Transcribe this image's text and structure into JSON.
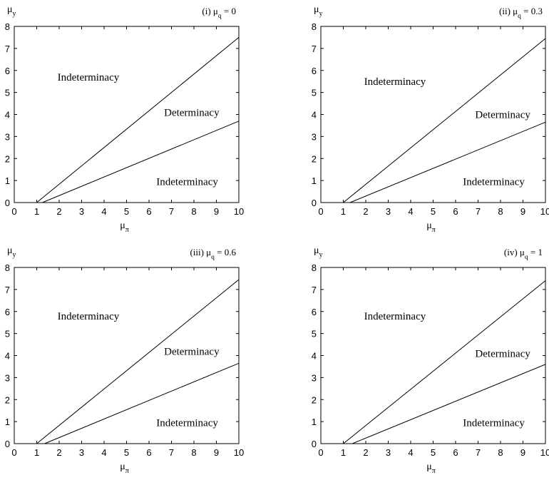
{
  "chart_data": [
    {
      "type": "line",
      "title": "(i) μ",
      "title_sub": "q",
      "title_value": " = 0",
      "xlabel": "μ",
      "xlabel_sub": "π",
      "ylabel": "μ",
      "ylabel_sub": "y",
      "xlim": [
        0,
        10
      ],
      "ylim": [
        0,
        8
      ],
      "x_ticks": [
        "0",
        "1",
        "2",
        "3",
        "4",
        "5",
        "6",
        "7",
        "8",
        "9",
        "10"
      ],
      "y_ticks": [
        "0",
        "1",
        "2",
        "3",
        "4",
        "5",
        "6",
        "7",
        "8"
      ],
      "grid": false,
      "series": [
        {
          "x": [
            1.0,
            10
          ],
          "y": [
            0,
            7.5
          ]
        },
        {
          "x": [
            1.25,
            10
          ],
          "y": [
            0,
            3.7
          ]
        }
      ],
      "annotations": [
        {
          "text": "Indeterminacy",
          "x": 3.3,
          "y": 5.7
        },
        {
          "text": "Determinacy",
          "x": 7.9,
          "y": 4.1
        },
        {
          "text": "Indeterminacy",
          "x": 7.7,
          "y": 0.95
        }
      ]
    },
    {
      "type": "line",
      "title": "(ii) μ",
      "title_sub": "q",
      "title_value": " = 0.3",
      "xlabel": "μ",
      "xlabel_sub": "π",
      "ylabel": "μ",
      "ylabel_sub": "y",
      "xlim": [
        0,
        10
      ],
      "ylim": [
        0,
        8
      ],
      "x_ticks": [
        "0",
        "1",
        "2",
        "3",
        "4",
        "5",
        "6",
        "7",
        "8",
        "9",
        "10"
      ],
      "y_ticks": [
        "0",
        "1",
        "2",
        "3",
        "4",
        "5",
        "6",
        "7",
        "8"
      ],
      "grid": false,
      "series": [
        {
          "x": [
            1.0,
            10
          ],
          "y": [
            0,
            7.45
          ]
        },
        {
          "x": [
            1.3,
            10
          ],
          "y": [
            0,
            3.65
          ]
        }
      ],
      "annotations": [
        {
          "text": "Indeterminacy",
          "x": 3.3,
          "y": 5.5
        },
        {
          "text": "Determinacy",
          "x": 8.1,
          "y": 4.0
        },
        {
          "text": "Indeterminacy",
          "x": 7.7,
          "y": 0.95
        }
      ]
    },
    {
      "type": "line",
      "title": "(iii) μ",
      "title_sub": "q",
      "title_value": " = 0.6",
      "xlabel": "μ",
      "xlabel_sub": "π",
      "ylabel": "μ",
      "ylabel_sub": "y",
      "xlim": [
        0,
        10
      ],
      "ylim": [
        0,
        8
      ],
      "x_ticks": [
        "0",
        "1",
        "2",
        "3",
        "4",
        "5",
        "6",
        "7",
        "8",
        "9",
        "10"
      ],
      "y_ticks": [
        "0",
        "1",
        "2",
        "3",
        "4",
        "5",
        "6",
        "7",
        "8"
      ],
      "grid": false,
      "series": [
        {
          "x": [
            1.0,
            10
          ],
          "y": [
            0,
            7.45
          ]
        },
        {
          "x": [
            1.35,
            10
          ],
          "y": [
            0,
            3.65
          ]
        }
      ],
      "annotations": [
        {
          "text": "Indeterminacy",
          "x": 3.3,
          "y": 5.8
        },
        {
          "text": "Determinacy",
          "x": 7.9,
          "y": 4.2
        },
        {
          "text": "Indeterminacy",
          "x": 7.7,
          "y": 0.95
        }
      ]
    },
    {
      "type": "line",
      "title": "(iv) μ",
      "title_sub": "q",
      "title_value": " = 1",
      "xlabel": "μ",
      "xlabel_sub": "π",
      "ylabel": "μ",
      "ylabel_sub": "y",
      "xlim": [
        0,
        10
      ],
      "ylim": [
        0,
        8
      ],
      "x_ticks": [
        "0",
        "1",
        "2",
        "3",
        "4",
        "5",
        "6",
        "7",
        "8",
        "9",
        "10"
      ],
      "y_ticks": [
        "0",
        "1",
        "2",
        "3",
        "4",
        "5",
        "6",
        "7",
        "8"
      ],
      "grid": false,
      "series": [
        {
          "x": [
            1.0,
            10
          ],
          "y": [
            0,
            7.4
          ]
        },
        {
          "x": [
            1.4,
            10
          ],
          "y": [
            0,
            3.6
          ]
        }
      ],
      "annotations": [
        {
          "text": "Indeterminacy",
          "x": 3.3,
          "y": 5.8
        },
        {
          "text": "Determinacy",
          "x": 8.1,
          "y": 4.1
        },
        {
          "text": "Indeterminacy",
          "x": 7.7,
          "y": 0.95
        }
      ]
    }
  ]
}
